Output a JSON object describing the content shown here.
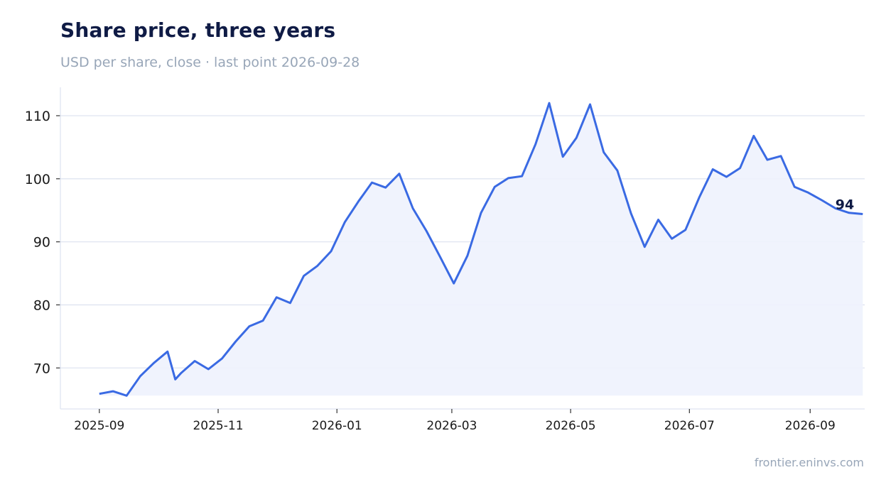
{
  "chart_data": {
    "type": "area",
    "title": "Share price, three years",
    "subtitle": "USD per share, close · last point 2026-09-28",
    "xlabel": "",
    "ylabel": "",
    "source": "frontier.eninvs.com",
    "x_ticks": [
      "2025-09",
      "2025-11",
      "2026-01",
      "2026-03",
      "2026-05",
      "2026-07",
      "2026-09"
    ],
    "y_ticks": [
      70,
      80,
      90,
      100,
      110
    ],
    "xlim": [
      "2025-08-12",
      "2026-09-29"
    ],
    "ylim": [
      63.5,
      114.5
    ],
    "grid": "horizontal",
    "end_label": "94",
    "colors": {
      "line": "#3a6ae3",
      "fill": "#eef2fd",
      "grid": "#dfe4f0",
      "axis": "#dfe4f0"
    },
    "series": [
      {
        "x": [
          "2025-09-01",
          "2025-09-08",
          "2025-09-15",
          "2025-09-22",
          "2025-09-29",
          "2025-10-06",
          "2025-10-10",
          "2025-10-13",
          "2025-10-20",
          "2025-10-27",
          "2025-11-03",
          "2025-11-10",
          "2025-11-17",
          "2025-11-24",
          "2025-12-01",
          "2025-12-08",
          "2025-12-15",
          "2025-12-22",
          "2025-12-29",
          "2026-01-05",
          "2026-01-12",
          "2026-01-19",
          "2026-01-26",
          "2026-02-02",
          "2026-02-09",
          "2026-02-16",
          "2026-02-23",
          "2026-03-02",
          "2026-03-09",
          "2026-03-16",
          "2026-03-23",
          "2026-03-30",
          "2026-04-06",
          "2026-04-13",
          "2026-04-20",
          "2026-04-27",
          "2026-05-04",
          "2026-05-11",
          "2026-05-18",
          "2026-05-25",
          "2026-06-01",
          "2026-06-08",
          "2026-06-15",
          "2026-06-22",
          "2026-06-29",
          "2026-07-06",
          "2026-07-13",
          "2026-07-20",
          "2026-07-27",
          "2026-08-03",
          "2026-08-10",
          "2026-08-17",
          "2026-08-24",
          "2026-08-31",
          "2026-09-07",
          "2026-09-14",
          "2026-09-21",
          "2026-09-28"
        ],
        "values": [
          65.9,
          66.3,
          65.6,
          68.7,
          70.8,
          72.6,
          68.2,
          69.2,
          71.1,
          69.8,
          71.5,
          74.2,
          76.6,
          77.5,
          81.2,
          80.3,
          84.6,
          86.2,
          88.5,
          93.1,
          96.4,
          99.4,
          98.6,
          100.8,
          95.3,
          91.7,
          87.6,
          83.4,
          87.8,
          94.6,
          98.7,
          100.1,
          100.4,
          105.5,
          112.0,
          103.5,
          106.5,
          111.8,
          104.2,
          101.3,
          94.5,
          89.2,
          93.5,
          90.5,
          91.9,
          97.0,
          101.5,
          100.3,
          101.7,
          106.8,
          103.0,
          103.6,
          98.7,
          97.8,
          96.6,
          95.3,
          94.6,
          94.4
        ]
      }
    ]
  }
}
